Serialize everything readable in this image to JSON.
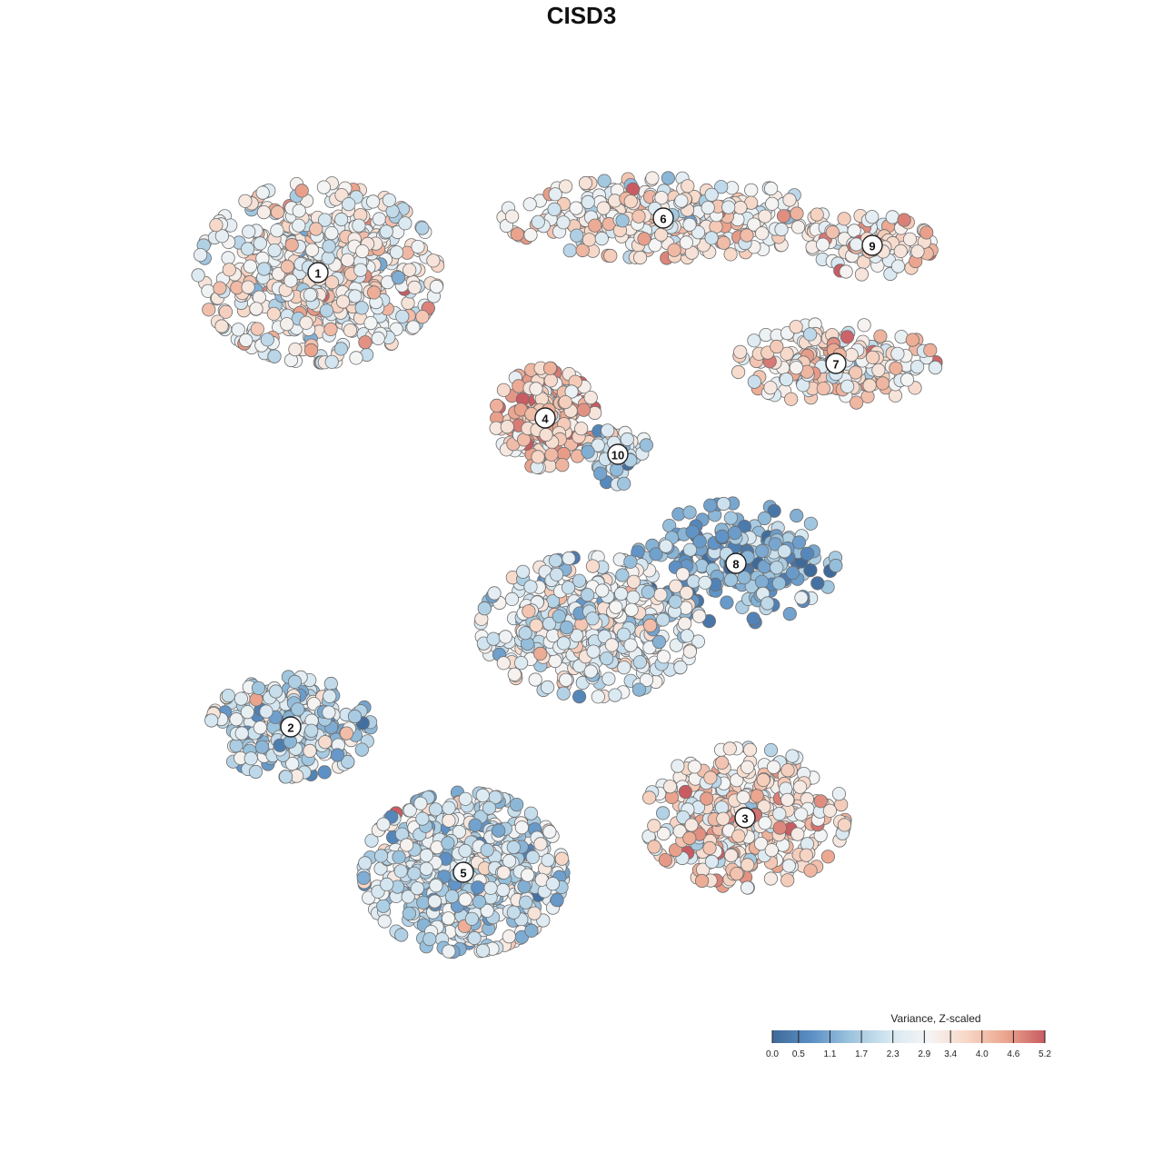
{
  "title": "CISD3",
  "chart_data": {
    "type": "scatter",
    "title": "CISD3",
    "xlabel": "",
    "ylabel": "",
    "grid": false,
    "color_scale": {
      "title": "Variance, Z-scaled",
      "ticks": [
        0.0,
        0.5,
        1.1,
        1.7,
        2.3,
        2.9,
        3.4,
        4.0,
        4.6,
        5.2
      ],
      "tick_labels": [
        "0.0",
        "0.5",
        "1.1",
        "1.7",
        "2.3",
        "2.9",
        "3.4",
        "4.0",
        "4.6",
        "5.2"
      ],
      "colors": [
        "#3f6a9a",
        "#5b8fc4",
        "#9cc4de",
        "#d6e7f1",
        "#f5f5f5",
        "#f7d7c6",
        "#eba58e",
        "#c95b62"
      ],
      "range": [
        0.0,
        5.2
      ],
      "legend_position": "bottom-right"
    },
    "clusters": [
      {
        "label": "1",
        "center": [
          -62,
          68
        ],
        "mean_value": 3.0,
        "spread": [
          12,
          9
        ],
        "n": 620
      },
      {
        "label": "2",
        "center": [
          -68,
          -32
        ],
        "mean_value": 2.0,
        "spread": [
          8,
          5
        ],
        "n": 300
      },
      {
        "label": "3",
        "center": [
          32,
          -52
        ],
        "mean_value": 3.4,
        "spread": [
          10,
          7
        ],
        "n": 420
      },
      {
        "label": "4",
        "center": [
          -12,
          36
        ],
        "mean_value": 3.9,
        "spread": [
          5,
          5
        ],
        "n": 240
      },
      {
        "label": "5",
        "center": [
          -30,
          -64
        ],
        "mean_value": 2.2,
        "spread": [
          10,
          8
        ],
        "n": 700
      },
      {
        "label": "6",
        "center": [
          14,
          80
        ],
        "mean_value": 3.2,
        "spread": [
          16,
          4
        ],
        "n": 380
      },
      {
        "label": "7",
        "center": [
          52,
          48
        ],
        "mean_value": 3.3,
        "spread": [
          10,
          4
        ],
        "n": 220
      },
      {
        "label": "8",
        "center": [
          30,
          4
        ],
        "mean_value": 1.2,
        "spread": [
          10,
          6
        ],
        "n": 220
      },
      {
        "label": "9",
        "center": [
          60,
          74
        ],
        "mean_value": 3.4,
        "spread": [
          6,
          3
        ],
        "n": 120
      },
      {
        "label": "10",
        "center": [
          4,
          28
        ],
        "mean_value": 1.9,
        "spread": [
          3,
          3
        ],
        "n": 60
      },
      {
        "label": "",
        "center": [
          -2,
          -10
        ],
        "mean_value": 2.6,
        "spread": [
          11,
          7
        ],
        "n": 480
      }
    ]
  }
}
